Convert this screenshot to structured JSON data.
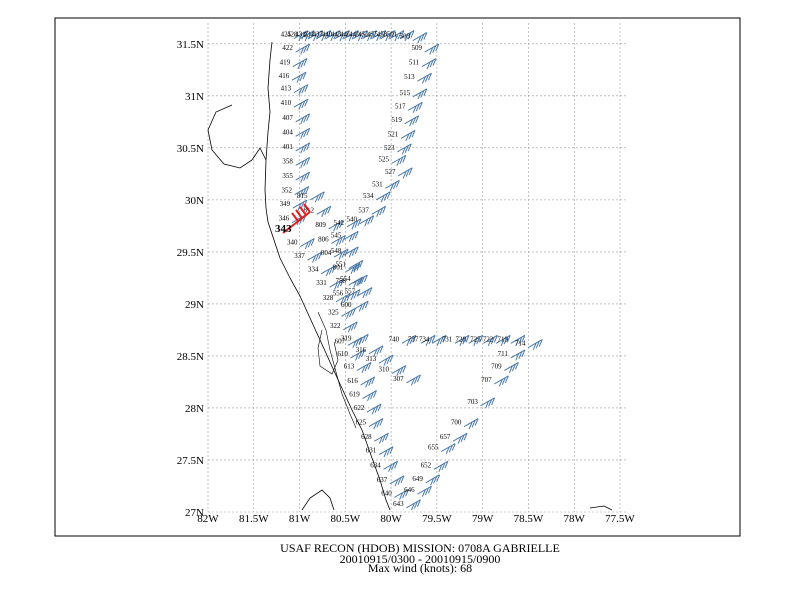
{
  "map": {
    "lat_ticks": [
      "31.5N",
      "31N",
      "30.5N",
      "30N",
      "29.5N",
      "29N",
      "28.5N",
      "28N",
      "27.5N",
      "27N"
    ],
    "lat_values": [
      31.5,
      31,
      30.5,
      30,
      29.5,
      29,
      28.5,
      28,
      27.5,
      27
    ],
    "lon_ticks": [
      "82W",
      "81.5W",
      "81W",
      "80.5W",
      "80W",
      "79.5W",
      "79W",
      "78.5W",
      "78W",
      "77.5W"
    ],
    "lon_values": [
      -82,
      -81.5,
      -81,
      -80.5,
      -80,
      -79.5,
      -79,
      -78.5,
      -78,
      -77.5
    ],
    "lat_range": [
      27,
      31.7
    ],
    "lon_range": [
      -82,
      -77.5
    ],
    "grid": true,
    "barb_color": "#4a79a8",
    "max_barb_color": "#e02020",
    "max_label": "343",
    "track_labels": [
      {
        "t": "425",
        "lon": -81.15,
        "lat": 31.57
      },
      {
        "t": "428",
        "lon": -81.08,
        "lat": 31.57
      },
      {
        "t": "431",
        "lon": -80.99,
        "lat": 31.57
      },
      {
        "t": "434",
        "lon": -80.9,
        "lat": 31.57
      },
      {
        "t": "437",
        "lon": -80.8,
        "lat": 31.57
      },
      {
        "t": "440",
        "lon": -80.7,
        "lat": 31.57
      },
      {
        "t": "443",
        "lon": -80.6,
        "lat": 31.57
      },
      {
        "t": "446",
        "lon": -80.5,
        "lat": 31.57
      },
      {
        "t": "449",
        "lon": -80.4,
        "lat": 31.57
      },
      {
        "t": "452",
        "lon": -80.3,
        "lat": 31.57
      },
      {
        "t": "455",
        "lon": -80.2,
        "lat": 31.57
      },
      {
        "t": "458",
        "lon": -80.1,
        "lat": 31.57
      },
      {
        "t": "501",
        "lon": -79.99,
        "lat": 31.57
      },
      {
        "t": "503",
        "lon": -79.85,
        "lat": 31.55
      },
      {
        "t": "422",
        "lon": -81.13,
        "lat": 31.44
      },
      {
        "t": "419",
        "lon": -81.16,
        "lat": 31.3
      },
      {
        "t": "416",
        "lon": -81.17,
        "lat": 31.17
      },
      {
        "t": "413",
        "lon": -81.15,
        "lat": 31.05
      },
      {
        "t": "410",
        "lon": -81.15,
        "lat": 30.91
      },
      {
        "t": "407",
        "lon": -81.13,
        "lat": 30.77
      },
      {
        "t": "404",
        "lon": -81.13,
        "lat": 30.63
      },
      {
        "t": "401",
        "lon": -81.13,
        "lat": 30.49
      },
      {
        "t": "358",
        "lon": -81.13,
        "lat": 30.35
      },
      {
        "t": "355",
        "lon": -81.13,
        "lat": 30.21
      },
      {
        "t": "352",
        "lon": -81.14,
        "lat": 30.07
      },
      {
        "t": "349",
        "lon": -81.16,
        "lat": 29.94
      },
      {
        "t": "346",
        "lon": -81.17,
        "lat": 29.8
      },
      {
        "t": "340",
        "lon": -81.08,
        "lat": 29.57
      },
      {
        "t": "337",
        "lon": -81.0,
        "lat": 29.44
      },
      {
        "t": "334",
        "lon": -80.85,
        "lat": 29.31
      },
      {
        "t": "331",
        "lon": -80.76,
        "lat": 29.18
      },
      {
        "t": "328",
        "lon": -80.69,
        "lat": 29.04
      },
      {
        "t": "325",
        "lon": -80.63,
        "lat": 28.9
      },
      {
        "t": "322",
        "lon": -80.61,
        "lat": 28.77
      },
      {
        "t": "319",
        "lon": -80.49,
        "lat": 28.65
      },
      {
        "t": "316",
        "lon": -80.33,
        "lat": 28.54
      },
      {
        "t": "313",
        "lon": -80.22,
        "lat": 28.45
      },
      {
        "t": "310",
        "lon": -80.08,
        "lat": 28.35
      },
      {
        "t": "307",
        "lon": -79.92,
        "lat": 28.26
      },
      {
        "t": "815",
        "lon": -80.97,
        "lat": 30.02
      },
      {
        "t": "812",
        "lon": -80.9,
        "lat": 29.88
      },
      {
        "t": "809",
        "lon": -80.77,
        "lat": 29.74
      },
      {
        "t": "806",
        "lon": -80.74,
        "lat": 29.6
      },
      {
        "t": "804",
        "lon": -80.71,
        "lat": 29.47
      },
      {
        "t": "801",
        "lon": -80.58,
        "lat": 29.33
      },
      {
        "t": "758",
        "lon": -80.55,
        "lat": 29.2
      },
      {
        "t": "556",
        "lon": -80.58,
        "lat": 29.08
      },
      {
        "t": "557",
        "lon": -80.45,
        "lat": 29.1
      },
      {
        "t": "600",
        "lon": -80.49,
        "lat": 28.97
      },
      {
        "t": "607",
        "lon": -80.56,
        "lat": 28.62
      },
      {
        "t": "610",
        "lon": -80.53,
        "lat": 28.5
      },
      {
        "t": "613",
        "lon": -80.46,
        "lat": 28.38
      },
      {
        "t": "616",
        "lon": -80.42,
        "lat": 28.24
      },
      {
        "t": "619",
        "lon": -80.4,
        "lat": 28.11
      },
      {
        "t": "622",
        "lon": -80.35,
        "lat": 27.98
      },
      {
        "t": "625",
        "lon": -80.33,
        "lat": 27.84
      },
      {
        "t": "628",
        "lon": -80.27,
        "lat": 27.7
      },
      {
        "t": "631",
        "lon": -80.22,
        "lat": 27.57
      },
      {
        "t": "634",
        "lon": -80.17,
        "lat": 27.43
      },
      {
        "t": "637",
        "lon": -80.1,
        "lat": 27.29
      },
      {
        "t": "640",
        "lon": -80.05,
        "lat": 27.16
      },
      {
        "t": "643",
        "lon": -79.92,
        "lat": 27.06
      },
      {
        "t": "646",
        "lon": -79.8,
        "lat": 27.19
      },
      {
        "t": "649",
        "lon": -79.71,
        "lat": 27.3
      },
      {
        "t": "652",
        "lon": -79.62,
        "lat": 27.43
      },
      {
        "t": "655",
        "lon": -79.54,
        "lat": 27.6
      },
      {
        "t": "657",
        "lon": -79.41,
        "lat": 27.7
      },
      {
        "t": "700",
        "lon": -79.29,
        "lat": 27.84
      },
      {
        "t": "703",
        "lon": -79.11,
        "lat": 28.04
      },
      {
        "t": "707",
        "lon": -78.96,
        "lat": 28.25
      },
      {
        "t": "709",
        "lon": -78.85,
        "lat": 28.38
      },
      {
        "t": "711",
        "lon": -78.78,
        "lat": 28.5
      },
      {
        "t": "714",
        "lon": -78.59,
        "lat": 28.6
      },
      {
        "t": "719",
        "lon": -78.78,
        "lat": 28.64
      },
      {
        "t": "722",
        "lon": -78.94,
        "lat": 28.64
      },
      {
        "t": "725",
        "lon": -79.08,
        "lat": 28.64
      },
      {
        "t": "728",
        "lon": -79.24,
        "lat": 28.64
      },
      {
        "t": "731",
        "lon": -79.39,
        "lat": 28.64
      },
      {
        "t": "734",
        "lon": -79.64,
        "lat": 28.64
      },
      {
        "t": "737",
        "lon": -79.76,
        "lat": 28.64
      },
      {
        "t": "740",
        "lon": -79.97,
        "lat": 28.64
      },
      {
        "t": "509",
        "lon": -79.72,
        "lat": 31.44
      },
      {
        "t": "511",
        "lon": -79.75,
        "lat": 31.3
      },
      {
        "t": "513",
        "lon": -79.8,
        "lat": 31.16
      },
      {
        "t": "515",
        "lon": -79.85,
        "lat": 31.01
      },
      {
        "t": "517",
        "lon": -79.9,
        "lat": 30.88
      },
      {
        "t": "519",
        "lon": -79.94,
        "lat": 30.75
      },
      {
        "t": "521",
        "lon": -79.98,
        "lat": 30.61
      },
      {
        "t": "523",
        "lon": -80.02,
        "lat": 30.48
      },
      {
        "t": "525",
        "lon": -80.08,
        "lat": 30.37
      },
      {
        "t": "527",
        "lon": -80.01,
        "lat": 30.25
      },
      {
        "t": "531",
        "lon": -80.15,
        "lat": 30.13
      },
      {
        "t": "534",
        "lon": -80.25,
        "lat": 30.02
      },
      {
        "t": "537",
        "lon": -80.3,
        "lat": 29.88
      },
      {
        "t": "540",
        "lon": -80.43,
        "lat": 29.79
      },
      {
        "t": "542",
        "lon": -80.57,
        "lat": 29.76
      },
      {
        "t": "545",
        "lon": -80.6,
        "lat": 29.64
      },
      {
        "t": "548",
        "lon": -80.6,
        "lat": 29.49
      },
      {
        "t": "551",
        "lon": -80.55,
        "lat": 29.36
      },
      {
        "t": "554",
        "lon": -80.5,
        "lat": 29.22
      }
    ]
  },
  "caption": {
    "line1": "USAF RECON (HDOB) MISSION:  0708A   GABRIELLE",
    "line2": "20010915/0300 - 20010915/0900",
    "line3": "Max wind (knots):   68"
  }
}
